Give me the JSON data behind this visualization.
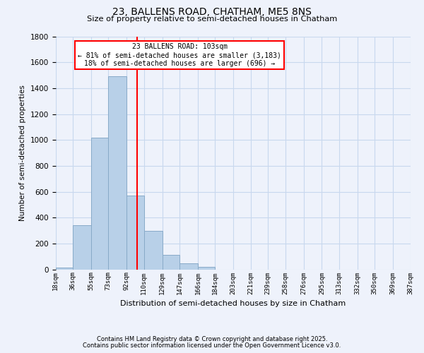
{
  "title": "23, BALLENS ROAD, CHATHAM, ME5 8NS",
  "subtitle": "Size of property relative to semi-detached houses in Chatham",
  "xlabel": "Distribution of semi-detached houses by size in Chatham",
  "ylabel": "Number of semi-detached properties",
  "bin_edges": [
    18,
    36,
    55,
    73,
    92,
    110,
    129,
    147,
    166,
    184,
    203,
    221,
    239,
    257,
    276,
    295,
    313,
    332,
    350,
    369,
    387
  ],
  "bar_heights": [
    15,
    340,
    1020,
    1490,
    570,
    300,
    110,
    45,
    18,
    0,
    0,
    0,
    0,
    0,
    0,
    0,
    0,
    0,
    0,
    0
  ],
  "bar_color": "#b8d0e8",
  "bar_edgecolor": "#88aac8",
  "grid_color": "#c8d8ee",
  "background_color": "#eef2fb",
  "plot_bg_color": "#eef2fb",
  "vline_x": 103,
  "vline_color": "red",
  "annotation_title": "23 BALLENS ROAD: 103sqm",
  "annotation_line1": "← 81% of semi-detached houses are smaller (3,183)",
  "annotation_line2": "18% of semi-detached houses are larger (696) →",
  "annotation_box_edgecolor": "red",
  "annotation_box_facecolor": "white",
  "tick_labels": [
    "18sqm",
    "36sqm",
    "55sqm",
    "73sqm",
    "92sqm",
    "110sqm",
    "129sqm",
    "147sqm",
    "166sqm",
    "184sqm",
    "203sqm",
    "221sqm",
    "239sqm",
    "258sqm",
    "276sqm",
    "295sqm",
    "313sqm",
    "332sqm",
    "350sqm",
    "369sqm",
    "387sqm"
  ],
  "ylim": [
    0,
    1800
  ],
  "yticks": [
    0,
    200,
    400,
    600,
    800,
    1000,
    1200,
    1400,
    1600,
    1800
  ],
  "footnote1": "Contains HM Land Registry data © Crown copyright and database right 2025.",
  "footnote2": "Contains public sector information licensed under the Open Government Licence v3.0."
}
